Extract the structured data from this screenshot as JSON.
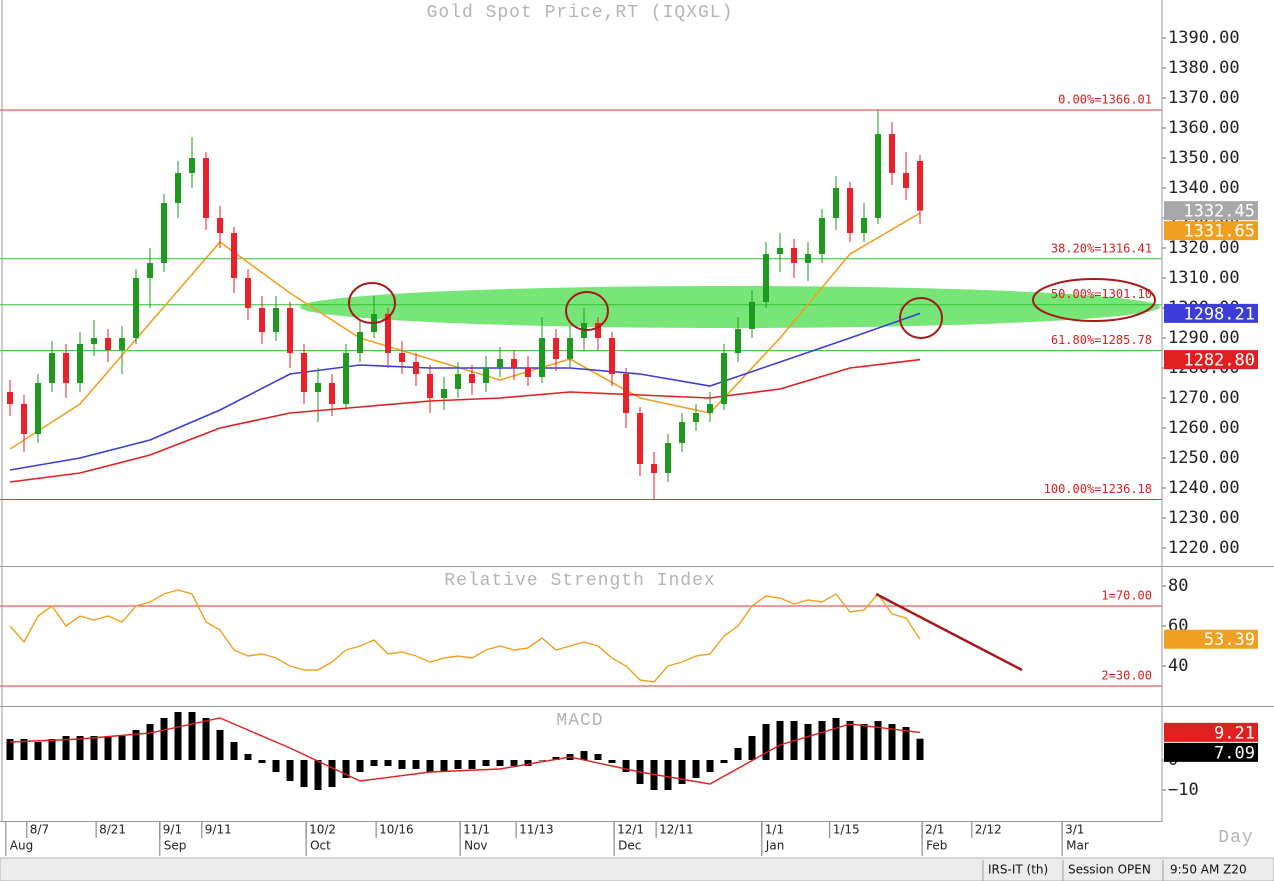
{
  "chart_data": [
    {
      "type": "candlestick",
      "title": "Gold Spot Price,RT (IQXGL)",
      "x": [
        0,
        2,
        4,
        6,
        8,
        10,
        12,
        14,
        16,
        18,
        20,
        22,
        24,
        26,
        28,
        30,
        32,
        34,
        36,
        38,
        40,
        42,
        44,
        46,
        48,
        50,
        52,
        54,
        56,
        58,
        60,
        62,
        64,
        66,
        68,
        70,
        72,
        74,
        76,
        78,
        80,
        82,
        84,
        86,
        88,
        90,
        92,
        94,
        96,
        98,
        100,
        102,
        104,
        106,
        108,
        110,
        112,
        114,
        116,
        118,
        120,
        122,
        124,
        126,
        128,
        130
      ],
      "open": [
        1272,
        1268,
        1258,
        1275,
        1285,
        1275,
        1288,
        1290,
        1286,
        1290,
        1310,
        1315,
        1335,
        1345,
        1350,
        1330,
        1325,
        1310,
        1300,
        1292,
        1300,
        1285,
        1272,
        1275,
        1268,
        1285,
        1292,
        1298,
        1285,
        1282,
        1278,
        1270,
        1273,
        1278,
        1275,
        1280,
        1283,
        1280,
        1277,
        1290,
        1283,
        1290,
        1295,
        1290,
        1278,
        1265,
        1248,
        1245,
        1255,
        1262,
        1265,
        1268,
        1285,
        1293,
        1302,
        1318,
        1320,
        1315,
        1318,
        1330,
        1340,
        1325,
        1330,
        1358,
        1345,
        1349
      ],
      "high": [
        1276,
        1271,
        1278,
        1289,
        1288,
        1292,
        1296,
        1293,
        1294,
        1313,
        1320,
        1338,
        1349,
        1357,
        1352,
        1334,
        1327,
        1313,
        1304,
        1304,
        1302,
        1288,
        1280,
        1278,
        1288,
        1296,
        1304,
        1300,
        1289,
        1285,
        1281,
        1277,
        1282,
        1281,
        1284,
        1287,
        1286,
        1284,
        1297,
        1293,
        1294,
        1300,
        1297,
        1292,
        1280,
        1267,
        1252,
        1258,
        1265,
        1268,
        1272,
        1288,
        1297,
        1306,
        1322,
        1325,
        1323,
        1322,
        1333,
        1344,
        1342,
        1335,
        1366,
        1362,
        1352,
        1351
      ],
      "low": [
        1264,
        1252,
        1255,
        1272,
        1270,
        1272,
        1284,
        1282,
        1278,
        1288,
        1300,
        1312,
        1330,
        1340,
        1326,
        1320,
        1305,
        1296,
        1288,
        1289,
        1280,
        1268,
        1262,
        1264,
        1266,
        1282,
        1290,
        1280,
        1278,
        1274,
        1265,
        1266,
        1270,
        1271,
        1272,
        1277,
        1276,
        1274,
        1275,
        1279,
        1280,
        1286,
        1286,
        1274,
        1260,
        1244,
        1236.18,
        1242,
        1252,
        1259,
        1262,
        1266,
        1282,
        1290,
        1300,
        1312,
        1310,
        1309,
        1315,
        1326,
        1322,
        1322,
        1328,
        1341,
        1336,
        1328
      ],
      "close": [
        1268,
        1258,
        1275,
        1285,
        1275,
        1288,
        1290,
        1286,
        1290,
        1310,
        1315,
        1335,
        1345,
        1350,
        1330,
        1325,
        1310,
        1300,
        1292,
        1300,
        1285,
        1272,
        1275,
        1268,
        1285,
        1292,
        1298,
        1285,
        1282,
        1278,
        1270,
        1273,
        1278,
        1275,
        1280,
        1283,
        1280,
        1277,
        1290,
        1283,
        1290,
        1295,
        1290,
        1278,
        1265,
        1248,
        1245,
        1255,
        1262,
        1265,
        1268,
        1285,
        1293,
        1302,
        1318,
        1320,
        1315,
        1318,
        1330,
        1340,
        1325,
        1330,
        1358,
        1345,
        1340,
        1332.45
      ],
      "up_color": "#1e9a1e",
      "down_color": "#e8212b",
      "tag_color": "#a8a8a8",
      "series": [
        {
          "color": "#f0a020",
          "x": [
            0,
            10,
            20,
            30,
            40,
            50,
            60,
            70,
            80,
            90,
            100,
            110,
            120,
            130
          ],
          "values": [
            1253,
            1268,
            1295,
            1322,
            1305,
            1290,
            1283,
            1276,
            1283,
            1270,
            1265,
            1290,
            1318,
            1331.65
          ]
        },
        {
          "color": "#3c3cd8",
          "x": [
            0,
            10,
            20,
            30,
            40,
            50,
            60,
            70,
            80,
            90,
            100,
            110,
            120,
            130
          ],
          "values": [
            1246,
            1250,
            1256,
            1266,
            1278,
            1281,
            1280,
            1280,
            1280,
            1278,
            1274,
            1282,
            1290,
            1298.21
          ]
        },
        {
          "color": "#e02020",
          "x": [
            0,
            10,
            20,
            30,
            40,
            50,
            60,
            70,
            80,
            90,
            100,
            110,
            120,
            130
          ],
          "values": [
            1242,
            1245,
            1251,
            1260,
            1265,
            1267,
            1269,
            1270,
            1272,
            1271,
            1270,
            1273,
            1280,
            1282.8
          ],
          "value_labels": [
            null,
            null,
            null,
            null,
            null,
            null,
            null,
            null,
            null,
            null,
            null,
            null,
            null,
            "1282.80"
          ]
        }
      ],
      "levels": [
        {
          "value": 1366.01,
          "label": "0.00%=1366.01",
          "color": "#e03030"
        },
        {
          "value": 1316.41,
          "label": "38.20%=1316.41",
          "color": "#30c030"
        },
        {
          "value": 1301.1,
          "label": "50.00%=1301.10",
          "color": "#30c030"
        },
        {
          "value": 1285.78,
          "label": "61.80%=1285.78",
          "color": "#30c030"
        },
        {
          "value": 1236.18,
          "label": "100.00%=1236.18",
          "color": "#e03030"
        }
      ],
      "xlim": [
        -1.43,
        164.57
      ],
      "ylim": [
        1214.33,
        1402.67
      ],
      "yticks": [
        {
          "value": 1220,
          "label": "1220.00"
        },
        {
          "value": 1230,
          "label": "1230.00"
        },
        {
          "value": 1240,
          "label": "1240.00"
        },
        {
          "value": 1250,
          "label": "1250.00"
        },
        {
          "value": 1260,
          "label": "1260.00"
        },
        {
          "value": 1270,
          "label": "1270.00"
        },
        {
          "value": 1280,
          "label": "1280.00"
        },
        {
          "value": 1290,
          "label": "1290.00"
        },
        {
          "value": 1300,
          "label": "1300.00"
        },
        {
          "value": 1310,
          "label": "1310.00"
        },
        {
          "value": 1320,
          "label": "1320.00"
        },
        {
          "value": 1330,
          "label": "1330.00"
        },
        {
          "value": 1340,
          "label": "1340.00"
        },
        {
          "value": 1350,
          "label": "1350.00"
        },
        {
          "value": 1360,
          "label": "1360.00"
        },
        {
          "value": 1370,
          "label": "1370.00"
        },
        {
          "value": 1380,
          "label": "1380.00"
        },
        {
          "value": 1390,
          "label": "1390.00"
        }
      ]
    },
    {
      "type": "line",
      "title": "Relative Strength Index",
      "x": [
        0,
        2,
        4,
        6,
        8,
        10,
        12,
        14,
        16,
        18,
        20,
        22,
        24,
        26,
        28,
        30,
        32,
        34,
        36,
        38,
        40,
        42,
        44,
        46,
        48,
        50,
        52,
        54,
        56,
        58,
        60,
        62,
        64,
        66,
        68,
        70,
        72,
        74,
        76,
        78,
        80,
        82,
        84,
        86,
        88,
        90,
        92,
        94,
        96,
        98,
        100,
        102,
        104,
        106,
        108,
        110,
        112,
        114,
        116,
        118,
        120,
        122,
        124,
        126,
        128,
        130
      ],
      "values": [
        60,
        52,
        65,
        70,
        60,
        65,
        63,
        65,
        62,
        70,
        72,
        76,
        78,
        76,
        62,
        58,
        48,
        45,
        46,
        44,
        40,
        38,
        38,
        42,
        48,
        50,
        53,
        46,
        47,
        45,
        42,
        44,
        45,
        44,
        48,
        50,
        48,
        49,
        54,
        48,
        50,
        52,
        50,
        44,
        40,
        33,
        32,
        40,
        42,
        45,
        46,
        55,
        60,
        70,
        75,
        74,
        71,
        73,
        72,
        76,
        67,
        68,
        76,
        66,
        64,
        53.39
      ],
      "color": "#f0a020",
      "levels": [
        {
          "value": 70,
          "label": "1=70.00",
          "color": "#e03030"
        },
        {
          "value": 30,
          "label": "2=30.00",
          "color": "#e03030"
        }
      ],
      "xlim": [
        -1.43,
        164.57
      ],
      "ylim": [
        20.5,
        89
      ],
      "yticks": [
        40,
        60,
        80
      ]
    },
    {
      "type": "macd",
      "title": "MACD",
      "x": [
        0,
        2,
        4,
        6,
        8,
        10,
        12,
        14,
        16,
        18,
        20,
        22,
        24,
        26,
        28,
        30,
        32,
        34,
        36,
        38,
        40,
        42,
        44,
        46,
        48,
        50,
        52,
        54,
        56,
        58,
        60,
        62,
        64,
        66,
        68,
        70,
        72,
        74,
        76,
        78,
        80,
        82,
        84,
        86,
        88,
        90,
        92,
        94,
        96,
        98,
        100,
        102,
        104,
        106,
        108,
        110,
        112,
        114,
        116,
        118,
        120,
        122,
        124,
        126,
        128,
        130
      ],
      "values": [
        7,
        7,
        6,
        7,
        8,
        8,
        8,
        8,
        8,
        10,
        12,
        14,
        16,
        16,
        14,
        10,
        6,
        2,
        -1,
        -4,
        -7,
        -9,
        -10,
        -9,
        -6,
        -4,
        -2,
        -2,
        -3,
        -3,
        -4,
        -4,
        -3,
        -3,
        -2,
        -2,
        -2,
        -2,
        0,
        1,
        2,
        3,
        2,
        -1,
        -4,
        -8,
        -10,
        -10,
        -8,
        -6,
        -4,
        -1,
        4,
        8,
        12,
        13,
        13,
        12,
        13,
        14,
        13,
        12,
        13,
        12,
        11,
        7.09
      ],
      "color": "#000000",
      "series": [
        {
          "color": "#e02020",
          "x": [
            0,
            10,
            20,
            30,
            40,
            50,
            60,
            70,
            80,
            90,
            100,
            110,
            120,
            130
          ],
          "values": [
            6,
            7,
            9,
            14,
            4,
            -7,
            -4,
            -3,
            1,
            -4,
            -8,
            5,
            12,
            9.21
          ]
        }
      ],
      "xlim": [
        -1.43,
        164.57
      ],
      "ylim": [
        -20,
        17.33
      ],
      "yticks": [
        0,
        {
          "value": -10,
          "label": "−10"
        }
      ],
      "xticks": [
        {
          "value": 2.4,
          "label": "8/7"
        },
        {
          "value": 12.3,
          "label": "8/21"
        },
        {
          "value": 21.4,
          "label": "9/1"
        },
        {
          "value": 27.4,
          "label": "9/11"
        },
        {
          "value": 42.3,
          "label": "10/2"
        },
        {
          "value": 52.3,
          "label": "10/16"
        },
        {
          "value": 64.3,
          "label": "11/1"
        },
        {
          "value": 72.3,
          "label": "11/13"
        },
        {
          "value": 86.3,
          "label": "12/1"
        },
        {
          "value": 92.3,
          "label": "12/11"
        },
        {
          "value": 107.4,
          "label": "1/1"
        },
        {
          "value": 117.1,
          "label": "1/15"
        },
        {
          "value": 130.3,
          "label": "2/1"
        },
        {
          "value": 137.4,
          "label": "2/12"
        },
        {
          "value": 150.3,
          "label": "3/1"
        }
      ],
      "month_ticks": [
        {
          "value": -0.6,
          "label": "Aug"
        },
        {
          "value": 21.4,
          "label": "Sep"
        },
        {
          "value": 42.3,
          "label": "Oct"
        },
        {
          "value": 64.3,
          "label": "Nov"
        },
        {
          "value": 86.3,
          "label": "Dec"
        },
        {
          "value": 107.4,
          "label": "Jan"
        },
        {
          "value": 130.3,
          "label": "Feb"
        },
        {
          "value": 150.3,
          "label": "Mar"
        }
      ],
      "x_label": "Day"
    }
  ],
  "status_bar": [
    "IRS-IT (th)",
    "Session OPEN",
    "9:50 AM Z20"
  ]
}
